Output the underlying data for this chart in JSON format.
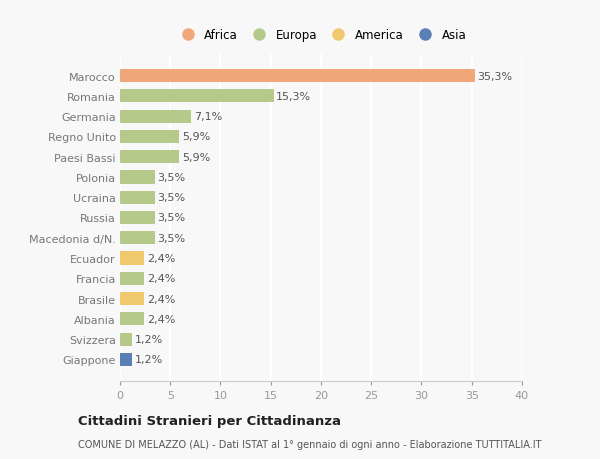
{
  "categories": [
    "Giappone",
    "Svizzera",
    "Albania",
    "Brasile",
    "Francia",
    "Ecuador",
    "Macedonia d/N.",
    "Russia",
    "Ucraina",
    "Polonia",
    "Paesi Bassi",
    "Regno Unito",
    "Germania",
    "Romania",
    "Marocco"
  ],
  "values": [
    1.2,
    1.2,
    2.4,
    2.4,
    2.4,
    2.4,
    3.5,
    3.5,
    3.5,
    3.5,
    5.9,
    5.9,
    7.1,
    15.3,
    35.3
  ],
  "labels": [
    "1,2%",
    "1,2%",
    "2,4%",
    "2,4%",
    "2,4%",
    "2,4%",
    "3,5%",
    "3,5%",
    "3,5%",
    "3,5%",
    "5,9%",
    "5,9%",
    "7,1%",
    "15,3%",
    "35,3%"
  ],
  "colors": [
    "#5b7fb5",
    "#b5c98a",
    "#b5c98a",
    "#f0c96e",
    "#b5c98a",
    "#f0c96e",
    "#b5c98a",
    "#b5c98a",
    "#b5c98a",
    "#b5c98a",
    "#b5c98a",
    "#b5c98a",
    "#b5c98a",
    "#b5c98a",
    "#f0a87a"
  ],
  "legend_labels": [
    "Africa",
    "Europa",
    "America",
    "Asia"
  ],
  "legend_colors": [
    "#f0a87a",
    "#b5c98a",
    "#f0c96e",
    "#5b7fb5"
  ],
  "xlim": [
    0,
    40
  ],
  "xticks": [
    0,
    5,
    10,
    15,
    20,
    25,
    30,
    35,
    40
  ],
  "title": "Cittadini Stranieri per Cittadinanza",
  "subtitle": "COMUNE DI MELAZZO (AL) - Dati ISTAT al 1° gennaio di ogni anno - Elaborazione TUTTITALIA.IT",
  "bg_color": "#f8f8f8",
  "grid_color": "#ffffff",
  "bar_height": 0.65,
  "label_fontsize": 8,
  "tick_fontsize": 8
}
